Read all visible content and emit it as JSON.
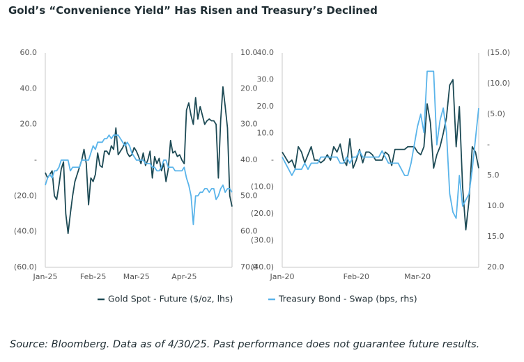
{
  "title": "Gold’s “Convenience Yield” Has Risen and Treasury’s Declined",
  "source": "Source: Bloomberg. Data as of 4/30/25. Past performance does not guarantee future results.",
  "chart_data": [
    {
      "type": "line",
      "categories": [
        "Jan-25",
        null,
        null,
        null,
        null,
        null,
        null,
        null,
        null,
        null,
        null,
        null,
        null,
        null,
        null,
        null,
        null,
        null,
        null,
        null,
        null,
        "Feb-25",
        null,
        null,
        null,
        null,
        null,
        null,
        null,
        null,
        null,
        null,
        null,
        null,
        null,
        null,
        null,
        null,
        null,
        null,
        "Mar-25",
        null,
        null,
        null,
        null,
        null,
        null,
        null,
        null,
        null,
        null,
        null,
        null,
        null,
        null,
        null,
        null,
        null,
        null,
        null,
        null,
        "Apr-25",
        null,
        null,
        null,
        null,
        null,
        null,
        null,
        null,
        null,
        null,
        null,
        null,
        null,
        null,
        null,
        null,
        null,
        null,
        null,
        null,
        null
      ],
      "ylim": [
        -60,
        60
      ],
      "yticks": [
        {
          "value": 60,
          "label": "60.0"
        },
        {
          "value": 40,
          "label": "40.0"
        },
        {
          "value": 20,
          "label": "20.0"
        },
        {
          "value": 0,
          "label": "-"
        },
        {
          "value": -20,
          "label": "(20.0)"
        },
        {
          "value": -40,
          "label": "(40.0)"
        },
        {
          "value": -60,
          "label": "(60.0)"
        }
      ],
      "y2lim": [
        70,
        10
      ],
      "y2ticks": [
        {
          "value": 10,
          "label": "10.0"
        },
        {
          "value": 20,
          "label": "20.0"
        },
        {
          "value": 30,
          "label": "30.0"
        },
        {
          "value": 40,
          "label": "40.0"
        },
        {
          "value": 50,
          "label": "50.0"
        },
        {
          "value": 60,
          "label": "60.0"
        },
        {
          "value": 70,
          "label": "70.0"
        }
      ],
      "series": [
        {
          "name": "Gold Spot - Future ($/oz, lhs)",
          "color": "#1d4a55",
          "values": [
            -7,
            -10,
            -8,
            -6,
            -20,
            -22,
            -14,
            -5,
            -1,
            -30,
            -41,
            -30,
            -20,
            -12,
            -8,
            -4,
            0,
            6,
            -2,
            -25,
            -10,
            -12,
            -8,
            4,
            -3,
            -4,
            5,
            5,
            3,
            8,
            6,
            18,
            3,
            5,
            7,
            10,
            4,
            2,
            3,
            7,
            5,
            2,
            -2,
            4,
            -3,
            0,
            5,
            -10,
            2,
            -2,
            1,
            -6,
            -2,
            -12,
            -5,
            11,
            4,
            5,
            2,
            3,
            0,
            -2,
            28,
            32,
            25,
            20,
            35,
            23,
            30,
            25,
            20,
            22,
            23,
            22,
            22,
            20,
            -10,
            22,
            41,
            30,
            18,
            -20,
            -26
          ]
        },
        {
          "name": "Treasury Bond - Swap (bps, rhs)",
          "color": "#5ab4ea",
          "axis": "y2",
          "values": [
            47,
            45,
            44,
            45,
            43,
            43,
            42,
            40,
            40,
            40,
            40,
            43,
            42,
            42,
            42,
            42,
            40,
            40,
            40,
            40,
            38,
            36,
            37,
            35,
            35,
            35,
            34,
            34,
            33,
            34,
            33,
            33,
            33,
            34,
            35,
            36,
            35,
            36,
            38,
            39,
            40,
            40,
            40,
            40,
            41,
            41,
            41,
            42,
            42,
            43,
            43,
            42,
            40,
            40,
            42,
            42,
            42,
            43,
            43,
            43,
            43,
            42,
            45,
            47,
            50,
            58,
            50,
            50,
            49,
            49,
            48,
            48,
            49,
            48,
            48,
            51,
            50,
            48,
            47,
            49,
            48,
            48,
            49
          ]
        }
      ]
    },
    {
      "type": "line",
      "categories": [
        "Jan-20",
        null,
        null,
        null,
        null,
        null,
        null,
        null,
        null,
        null,
        null,
        null,
        null,
        null,
        null,
        null,
        null,
        null,
        null,
        null,
        null,
        null,
        null,
        "Feb-20",
        null,
        null,
        null,
        null,
        null,
        null,
        null,
        null,
        null,
        null,
        null,
        null,
        null,
        null,
        null,
        null,
        null,
        null,
        "Mar-20",
        null,
        null,
        null,
        null,
        null,
        null,
        null,
        null,
        null,
        null,
        null,
        null,
        null,
        null,
        null,
        null,
        null,
        null,
        null
      ],
      "ylim": [
        -40,
        40
      ],
      "yticks": [
        {
          "value": 40,
          "label": "40.0"
        },
        {
          "value": 30,
          "label": "30.0"
        },
        {
          "value": 20,
          "label": "20.0"
        },
        {
          "value": 10,
          "label": "10.0"
        },
        {
          "value": 0,
          "label": "-"
        },
        {
          "value": -10,
          "label": "(10.0)"
        },
        {
          "value": -20,
          "label": "(20.0)"
        },
        {
          "value": -30,
          "label": "(30.0)"
        },
        {
          "value": -40,
          "label": "(40.0)"
        }
      ],
      "y2lim": [
        20,
        -15
      ],
      "y2ticks": [
        {
          "value": -15,
          "label": "(15.0)"
        },
        {
          "value": -10,
          "label": "(10.0)"
        },
        {
          "value": -5,
          "label": "(5.0)"
        },
        {
          "value": 0,
          "label": "-"
        },
        {
          "value": 5,
          "label": "5.0"
        },
        {
          "value": 10,
          "label": "10.0"
        },
        {
          "value": 15,
          "label": "15.0"
        },
        {
          "value": 20,
          "label": "20.0"
        }
      ],
      "series": [
        {
          "color": "#1d4a55",
          "values": [
            3,
            1,
            -1,
            0,
            -3,
            5,
            3,
            -1,
            2,
            5,
            0,
            0,
            -1,
            0,
            2,
            0,
            5,
            3,
            6,
            0,
            -2,
            8,
            -3,
            0,
            4,
            -1,
            3,
            3,
            2,
            0,
            0,
            0,
            3,
            2,
            -2,
            4,
            4,
            4,
            4,
            5,
            5,
            5,
            3,
            2,
            5,
            21,
            14,
            -3,
            2,
            5,
            10,
            16,
            28,
            30,
            5,
            20,
            -10,
            -26,
            -15,
            5,
            3,
            -3
          ]
        },
        {
          "color": "#5ab4ea",
          "axis": "y2",
          "values": [
            2,
            3,
            4,
            5,
            4,
            4,
            4,
            3,
            4,
            3,
            3,
            3,
            2,
            2,
            2,
            2,
            2,
            2,
            3,
            3,
            2,
            3,
            2,
            2,
            1,
            2,
            2,
            2,
            2,
            2,
            2,
            1,
            2,
            3,
            3,
            3,
            3,
            4,
            5,
            5,
            3,
            0,
            -3,
            -5,
            -2,
            -12,
            -12,
            -12,
            0,
            -4,
            -6,
            -2,
            8,
            11,
            12,
            5,
            10,
            9,
            8,
            4,
            -1,
            -6
          ]
        }
      ]
    }
  ]
}
